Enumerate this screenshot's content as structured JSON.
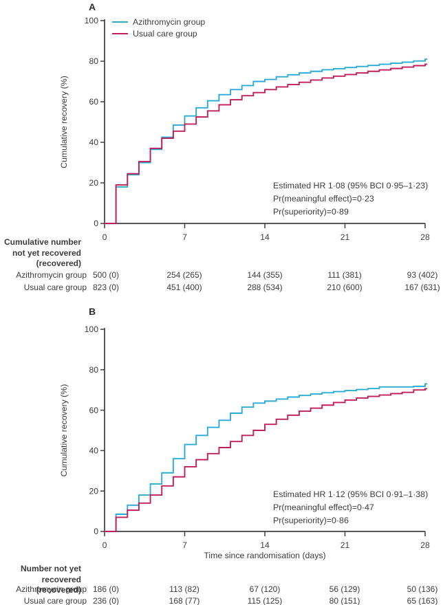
{
  "colors": {
    "azithromycin": "#29abd5",
    "usual_care": "#c01e5a",
    "axis": "#3f3f3f",
    "text": "#3b3b3b"
  },
  "chart_data": [
    {
      "type": "line",
      "step": true,
      "panel": "A",
      "title": "",
      "xlabel": "",
      "ylabel": "Cumulative recovery (%)",
      "xlim": [
        0,
        28
      ],
      "ylim": [
        0,
        100
      ],
      "x_ticks": [
        0,
        7,
        14,
        21,
        28
      ],
      "y_ticks": [
        0,
        20,
        40,
        60,
        80,
        100
      ],
      "legend_position": "top-left",
      "x": [
        0,
        1,
        2,
        3,
        4,
        5,
        6,
        7,
        8,
        9,
        10,
        11,
        12,
        13,
        14,
        15,
        16,
        17,
        18,
        19,
        20,
        21,
        22,
        23,
        24,
        25,
        26,
        27,
        28
      ],
      "series": [
        {
          "name": "Azithromycin group",
          "color": "#29abd5",
          "values": [
            0,
            18,
            24,
            30,
            36.5,
            42.5,
            48.5,
            53,
            57,
            60.5,
            63.5,
            66,
            68,
            70,
            71,
            72.3,
            73.3,
            74.2,
            75,
            75.8,
            76.3,
            76.9,
            77.4,
            77.9,
            78.5,
            79,
            79.5,
            80.1,
            81
          ]
        },
        {
          "name": "Usual care group",
          "color": "#c01e5a",
          "values": [
            0,
            19,
            24.5,
            30.5,
            37,
            42,
            45.5,
            49,
            52.5,
            55.5,
            58.5,
            61,
            63,
            64.5,
            66,
            67.3,
            68.5,
            69.6,
            70.7,
            71.7,
            72.6,
            73.4,
            74.2,
            75,
            75.7,
            76.4,
            77.1,
            77.8,
            78.5
          ]
        }
      ],
      "annotation": [
        "Estimated HR 1·08 (95% BCI 0·95–1·23)",
        "Pr(meaningful effect)=0·23",
        "Pr(superiority)=0·89"
      ]
    },
    {
      "type": "line",
      "step": true,
      "panel": "B",
      "title": "",
      "xlabel": "Time since randomisation (days)",
      "ylabel": "Cumulative recovery (%)",
      "xlim": [
        0,
        28
      ],
      "ylim": [
        0,
        100
      ],
      "x_ticks": [
        0,
        7,
        14,
        21,
        28
      ],
      "y_ticks": [
        0,
        20,
        40,
        60,
        80,
        100
      ],
      "legend_position": "none",
      "x": [
        0,
        1,
        2,
        3,
        4,
        5,
        6,
        7,
        8,
        9,
        10,
        11,
        12,
        13,
        14,
        15,
        16,
        17,
        18,
        19,
        20,
        21,
        22,
        23,
        24,
        25,
        26,
        27,
        28
      ],
      "series": [
        {
          "name": "Azithromycin group",
          "color": "#29abd5",
          "values": [
            0,
            8.5,
            13,
            18,
            23.5,
            29,
            36,
            43,
            47.5,
            51.5,
            55,
            58.5,
            61.5,
            63.5,
            64.5,
            65.5,
            66.5,
            67.3,
            68,
            68.6,
            69.2,
            69.7,
            70.2,
            70.7,
            71.5,
            71.5,
            71.5,
            71.8,
            73
          ]
        },
        {
          "name": "Usual care group",
          "color": "#c01e5a",
          "values": [
            0,
            7,
            10.5,
            14,
            18,
            22.5,
            27,
            32,
            35.5,
            38.5,
            41.5,
            44.5,
            47.5,
            50,
            53,
            55.5,
            57.5,
            59.5,
            61,
            62.5,
            63.8,
            65,
            66,
            66.8,
            67.5,
            68.2,
            68.8,
            70,
            70.6
          ]
        }
      ],
      "annotation": [
        "Estimated HR 1·12 (95% BCI 0·91–1·38)",
        "Pr(meaningful effect)=0·47",
        "Pr(superiority)=0·86"
      ]
    }
  ],
  "tables": {
    "a": {
      "header_lines": [
        "Cumulative number",
        "not yet recovered",
        "(recovered)"
      ],
      "rows": [
        {
          "label": "Azithromycin group",
          "values": [
            "500 (0)",
            "254 (265)",
            "144 (355)",
            "111 (381)",
            "93 (402)"
          ]
        },
        {
          "label": "Usual care group",
          "values": [
            "823 (0)",
            "451 (400)",
            "288 (534)",
            "210 (600)",
            "167 (631)"
          ]
        }
      ]
    },
    "b": {
      "header_lines": [
        "Number not yet",
        "recovered (recovered)"
      ],
      "rows": [
        {
          "label": "Azithromycin group",
          "values": [
            "186 (0)",
            "113 (82)",
            "67 (120)",
            "56 (129)",
            "50 (136)"
          ]
        },
        {
          "label": "Usual care group",
          "values": [
            "236 (0)",
            "168 (77)",
            "115 (125)",
            "80 (151)",
            "65 (163)"
          ]
        }
      ]
    }
  }
}
